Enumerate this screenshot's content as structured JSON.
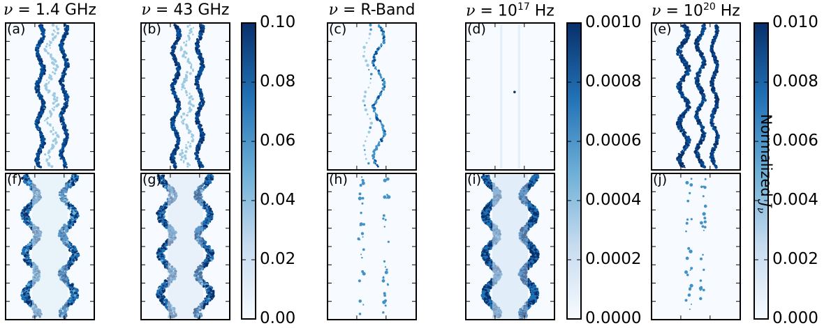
{
  "figure": {
    "column_titles": [
      {
        "sym": "ν",
        "text": " = 1.4 GHz"
      },
      {
        "sym": "ν",
        "text": " = 43 GHz"
      },
      {
        "sym": "ν",
        "text": " = R-Band"
      },
      {
        "sym": "ν",
        "text": " = 10",
        "sup": "17",
        "tail": " Hz"
      },
      {
        "sym": "ν",
        "text": " = 10",
        "sup": "20",
        "tail": " Hz"
      }
    ],
    "panel_labels": [
      "(a)",
      "(b)",
      "(c)",
      "(d)",
      "(e)",
      "(f)",
      "(g)",
      "(h)",
      "(i)",
      "(j)"
    ],
    "colorbar_label": {
      "text": "Normalized ",
      "sym": "J",
      "sub": "ν"
    },
    "colors": {
      "low": "#f7fbff",
      "mid": "#6baed6",
      "high": "#08306b"
    }
  },
  "chart_data": {
    "type": "heatmap",
    "colormap": "Blues",
    "panels": [
      {
        "label": "(a)",
        "row": "top",
        "frequency": "1.4 GHz",
        "pattern": "two wavy filament edges",
        "intensity": 0.9
      },
      {
        "label": "(b)",
        "row": "top",
        "frequency": "43 GHz",
        "pattern": "two wavy filament edges",
        "intensity": 0.95
      },
      {
        "label": "(c)",
        "row": "top",
        "frequency": "R-Band",
        "pattern": "sparse single knotty filament",
        "intensity": 0.6
      },
      {
        "label": "(d)",
        "row": "top",
        "frequency": "10^17 Hz",
        "pattern": "faint, nearly empty",
        "intensity": 0.1
      },
      {
        "label": "(e)",
        "row": "top",
        "frequency": "10^20 Hz",
        "pattern": "three bright wavy strands",
        "intensity": 1.0
      },
      {
        "label": "(f)",
        "row": "bottom",
        "frequency": "1.4 GHz",
        "pattern": "periodic shocked cusps",
        "intensity": 0.9
      },
      {
        "label": "(g)",
        "row": "bottom",
        "frequency": "43 GHz",
        "pattern": "periodic shocked cusps",
        "intensity": 0.95
      },
      {
        "label": "(h)",
        "row": "bottom",
        "frequency": "R-Band",
        "pattern": "sparse knots on two edges",
        "intensity": 0.5
      },
      {
        "label": "(i)",
        "row": "bottom",
        "frequency": "10^17 Hz",
        "pattern": "saturated periodic cusps",
        "intensity": 1.0
      },
      {
        "label": "(j)",
        "row": "bottom",
        "frequency": "10^20 Hz",
        "pattern": "sparse faint knots",
        "intensity": 0.4
      }
    ],
    "colorbars": [
      {
        "range": [
          0.0,
          0.1
        ],
        "ticks": [
          "0.00",
          "0.02",
          "0.04",
          "0.06",
          "0.08",
          "0.10"
        ],
        "applies_to": "columns 1-2"
      },
      {
        "range": [
          0.0,
          0.001
        ],
        "ticks": [
          "0.0000",
          "0.0002",
          "0.0004",
          "0.0006",
          "0.0008",
          "0.0010"
        ],
        "applies_to": "columns 3-4"
      },
      {
        "range": [
          0.0,
          0.01
        ],
        "ticks": [
          "0.000",
          "0.002",
          "0.004",
          "0.006",
          "0.008",
          "0.010"
        ],
        "applies_to": "column 5",
        "label": "Normalized J_ν"
      }
    ]
  }
}
